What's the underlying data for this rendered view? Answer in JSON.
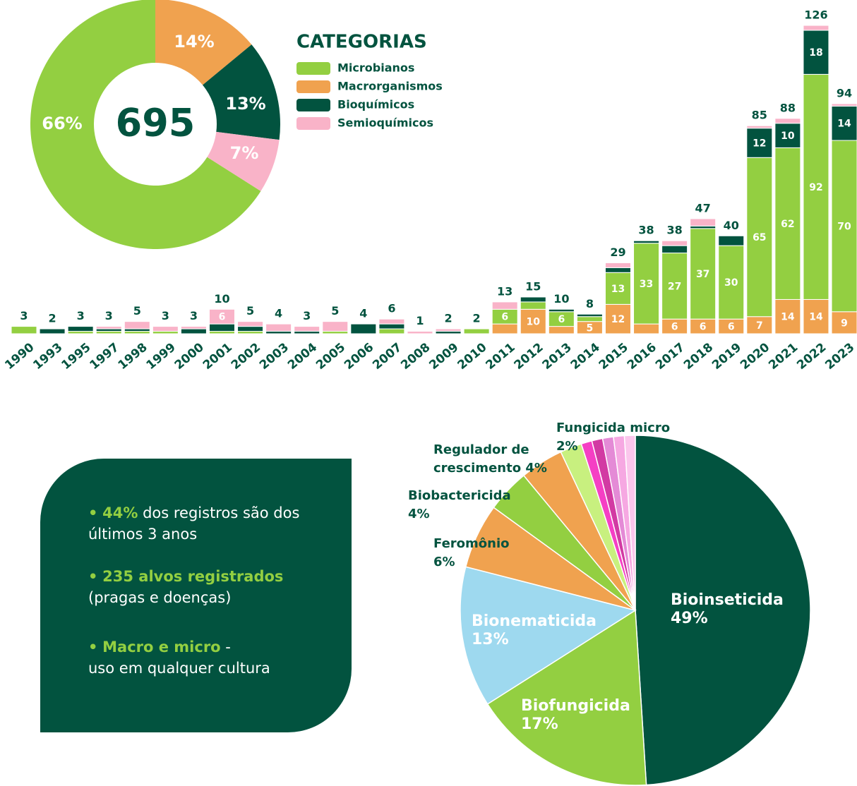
{
  "chart_data": [
    {
      "type": "donut",
      "center_label": "695",
      "legend_title": "CATEGORIAS",
      "categories": [
        "Microbianos",
        "Macrorganismos",
        "Bioquímicos",
        "Semioquímicos"
      ],
      "values": [
        66,
        14,
        13,
        7
      ],
      "value_labels": [
        "66%",
        "14%",
        "13%",
        "7%"
      ],
      "colors": [
        "#93cf41",
        "#f0a24f",
        "#02533f",
        "#f9b3c8"
      ]
    },
    {
      "type": "stacked-bar",
      "categories": [
        "1990",
        "1993",
        "1995",
        "1997",
        "1998",
        "1999",
        "2000",
        "2001",
        "2002",
        "2003",
        "2004",
        "2005",
        "2006",
        "2007",
        "2008",
        "2009",
        "2010",
        "2011",
        "2012",
        "2013",
        "2014",
        "2015",
        "2016",
        "2017",
        "2018",
        "2019",
        "2020",
        "2021",
        "2022",
        "2023"
      ],
      "totals": [
        3,
        2,
        3,
        3,
        5,
        3,
        3,
        10,
        5,
        4,
        3,
        5,
        4,
        6,
        1,
        2,
        2,
        13,
        15,
        10,
        8,
        29,
        38,
        38,
        47,
        40,
        85,
        88,
        126,
        94
      ],
      "series": [
        {
          "color": "#f0a24f",
          "values": [
            0,
            0,
            0,
            0,
            0,
            0,
            0,
            0,
            0,
            0,
            0,
            0,
            0,
            0,
            0,
            0,
            0,
            4,
            10,
            3,
            5,
            12,
            4,
            6,
            6,
            6,
            7,
            14,
            14,
            9
          ],
          "value_labels": [
            null,
            null,
            null,
            null,
            null,
            null,
            null,
            null,
            null,
            null,
            null,
            null,
            null,
            null,
            null,
            null,
            null,
            null,
            10,
            null,
            5,
            12,
            null,
            6,
            6,
            6,
            7,
            14,
            14,
            9
          ]
        },
        {
          "color": "#93cf41",
          "values": [
            3,
            0,
            1,
            1,
            1,
            1,
            0,
            1,
            1,
            0,
            0,
            1,
            0,
            2,
            0,
            0,
            2,
            6,
            3,
            6,
            2,
            13,
            33,
            27,
            37,
            30,
            65,
            62,
            92,
            70
          ],
          "value_labels": [
            null,
            null,
            null,
            null,
            null,
            null,
            null,
            null,
            null,
            null,
            null,
            null,
            null,
            null,
            null,
            null,
            null,
            6,
            null,
            6,
            null,
            13,
            33,
            27,
            37,
            30,
            65,
            62,
            92,
            70
          ]
        },
        {
          "color": "#02533f",
          "values": [
            0,
            2,
            2,
            1,
            1,
            0,
            2,
            3,
            2,
            1,
            1,
            0,
            4,
            2,
            0,
            1,
            0,
            0,
            2,
            1,
            1,
            2,
            1,
            3,
            1,
            4,
            12,
            10,
            18,
            14
          ],
          "value_labels": [
            null,
            null,
            null,
            null,
            null,
            null,
            null,
            null,
            null,
            null,
            null,
            null,
            null,
            null,
            null,
            null,
            null,
            null,
            null,
            null,
            null,
            null,
            null,
            null,
            null,
            null,
            12,
            10,
            18,
            14
          ]
        },
        {
          "color": "#f9b3c8",
          "values": [
            0,
            0,
            0,
            1,
            3,
            2,
            1,
            6,
            2,
            3,
            2,
            4,
            0,
            2,
            1,
            1,
            0,
            3,
            0,
            0,
            0,
            2,
            0,
            2,
            3,
            0,
            1,
            2,
            2,
            1
          ],
          "value_labels": [
            null,
            null,
            null,
            null,
            null,
            null,
            null,
            6,
            null,
            null,
            null,
            null,
            null,
            null,
            null,
            null,
            null,
            null,
            null,
            null,
            null,
            null,
            null,
            null,
            null,
            null,
            null,
            null,
            null,
            null
          ]
        }
      ]
    },
    {
      "type": "pie",
      "categories": [
        "Bioinseticida",
        "Biofungicida",
        "Bionematicida",
        "Feromônio",
        "Biobactericida",
        "Regulador de crescimento",
        "Fungicida micro",
        null,
        null,
        null,
        null,
        null
      ],
      "values": [
        49,
        17,
        13,
        6,
        4,
        4,
        2,
        1,
        1,
        1,
        1,
        1
      ],
      "value_labels": [
        "49%",
        "17%",
        "13%",
        "6%",
        "4%",
        "4%",
        "2%",
        null,
        null,
        null,
        null,
        null
      ],
      "colors": [
        "#02533f",
        "#93cf41",
        "#9ed9ef",
        "#f0a24f",
        "#93cf41",
        "#f0a24f",
        "#c8f07f",
        "#f53fc4",
        "#d23aa3",
        "#e48ad6",
        "#f6a8e2",
        "#fbc6ec"
      ]
    }
  ],
  "highlights": [
    {
      "strong": "44%",
      "text": "dos registros são dos últimos 3 anos"
    },
    {
      "strong": "235 alvos registrados",
      "text": "(pragas e doenças)"
    },
    {
      "strong": "Macro e micro",
      "text": "-\nuso em qualquer cultura"
    }
  ]
}
